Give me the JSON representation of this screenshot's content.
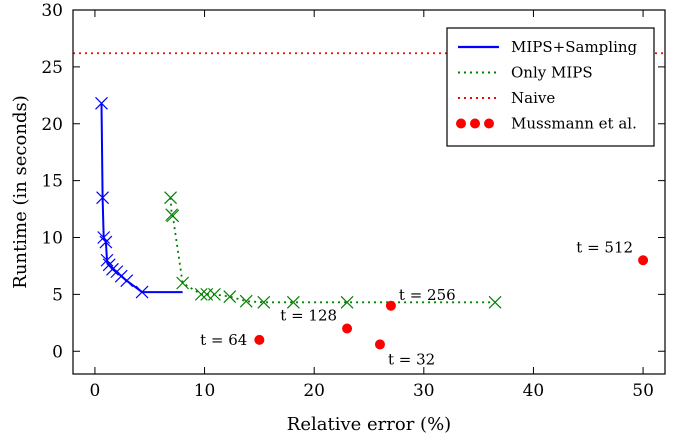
{
  "chart_data": {
    "type": "scatter",
    "title": "",
    "xlabel": "Relative error (%)",
    "ylabel": "Runtime (in seconds)",
    "xlim": [
      -2,
      52
    ],
    "ylim": [
      -2,
      30
    ],
    "xticks": [
      0,
      10,
      20,
      30,
      40,
      50
    ],
    "yticks": [
      0,
      5,
      10,
      15,
      20,
      25,
      30
    ],
    "grid": false,
    "legend_position": "top-right",
    "series": [
      {
        "name": "MIPS+Sampling",
        "style": "solid-line-x-markers",
        "color": "#0000ff",
        "points": [
          [
            0.6,
            21.8
          ],
          [
            0.7,
            13.5
          ],
          [
            0.8,
            10.0
          ],
          [
            1.0,
            9.6
          ],
          [
            1.1,
            8.0
          ],
          [
            1.3,
            7.6
          ],
          [
            1.6,
            7.2
          ],
          [
            2.0,
            7.0
          ],
          [
            2.4,
            6.6
          ],
          [
            2.9,
            6.2
          ],
          [
            4.3,
            5.2
          ],
          [
            8.0,
            5.2
          ]
        ],
        "markers": [
          [
            0.6,
            21.8
          ],
          [
            0.7,
            13.5
          ],
          [
            0.8,
            10.0
          ],
          [
            1.0,
            9.6
          ],
          [
            1.1,
            8.0
          ],
          [
            1.3,
            7.6
          ],
          [
            1.6,
            7.2
          ],
          [
            2.0,
            7.0
          ],
          [
            2.4,
            6.6
          ],
          [
            2.9,
            6.2
          ],
          [
            4.3,
            5.2
          ]
        ]
      },
      {
        "name": "Only MIPS",
        "style": "dotted-line-x-markers",
        "color": "#008000",
        "points": [
          [
            6.9,
            13.5
          ],
          [
            7.0,
            12.0
          ],
          [
            7.1,
            11.9
          ],
          [
            8.0,
            6.0
          ],
          [
            9.7,
            5.0
          ],
          [
            10.2,
            5.0
          ],
          [
            10.9,
            5.0
          ],
          [
            12.3,
            4.8
          ],
          [
            13.8,
            4.4
          ],
          [
            15.4,
            4.3
          ],
          [
            18.1,
            4.3
          ],
          [
            23.0,
            4.3
          ],
          [
            36.5,
            4.3
          ]
        ],
        "markers": [
          [
            6.9,
            13.5
          ],
          [
            7.0,
            12.0
          ],
          [
            7.1,
            11.9
          ],
          [
            8.0,
            6.0
          ],
          [
            9.7,
            5.0
          ],
          [
            10.2,
            5.0
          ],
          [
            10.9,
            5.0
          ],
          [
            12.3,
            4.8
          ],
          [
            13.8,
            4.4
          ],
          [
            15.4,
            4.3
          ],
          [
            18.1,
            4.3
          ],
          [
            23.0,
            4.3
          ],
          [
            36.5,
            4.3
          ]
        ]
      },
      {
        "name": "Naive",
        "style": "dotted-hline",
        "color": "#ff0000",
        "y": 26.2
      },
      {
        "name": "Mussmann et al.",
        "style": "dots",
        "color": "#ff0000",
        "points": [
          [
            15.0,
            1.0
          ],
          [
            23.0,
            2.0
          ],
          [
            26.0,
            0.6
          ],
          [
            27.0,
            4.0
          ],
          [
            50.0,
            8.0
          ]
        ]
      }
    ],
    "annotations": [
      {
        "text": "t = 64",
        "anchor": [
          15.0,
          1.0
        ],
        "placement": "left"
      },
      {
        "text": "t = 128",
        "anchor": [
          23.0,
          2.0
        ],
        "placement": "above-left"
      },
      {
        "text": "t = 32",
        "anchor": [
          26.0,
          0.6
        ],
        "placement": "below-right"
      },
      {
        "text": "t = 256",
        "anchor": [
          27.0,
          4.0
        ],
        "placement": "above-right"
      },
      {
        "text": "t = 512",
        "anchor": [
          50.0,
          8.0
        ],
        "placement": "above-left"
      }
    ]
  }
}
